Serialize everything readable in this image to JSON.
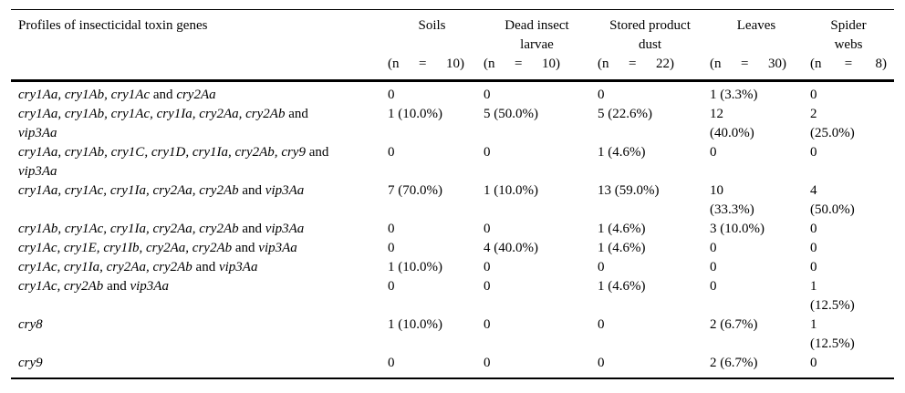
{
  "colors": {
    "text": "#000000",
    "rules": "#000000",
    "background": "#ffffff"
  },
  "table": {
    "header": {
      "profiles_label": "Profiles of insecticidal toxin genes",
      "columns": [
        {
          "label": "Soils",
          "n_label": "(n = 10)"
        },
        {
          "label": "Dead insect\nlarvae",
          "n_label": "(n = 10)"
        },
        {
          "label": "Stored product\ndust",
          "n_label": "(n = 22)"
        },
        {
          "label": "Leaves",
          "n_label": "(n = 30)"
        },
        {
          "label": "Spider\nwebs",
          "n_label": "(n = 8)"
        }
      ]
    },
    "rows": [
      {
        "profile": "cry1Aa, cry1Ab, cry1Ac and cry2Aa",
        "values": [
          "0",
          "0",
          "0",
          "1 (3.3%)",
          "0"
        ]
      },
      {
        "profile": "cry1Aa, cry1Ab, cry1Ac, cry1Ia, cry2Aa, cry2Ab and\nvip3Aa",
        "values": [
          "1 (10.0%)",
          "5 (50.0%)",
          "5 (22.6%)",
          "12\n(40.0%)",
          "2\n(25.0%)"
        ]
      },
      {
        "profile": "cry1Aa, cry1Ab, cry1C, cry1D, cry1Ia, cry2Ab, cry9 and\nvip3Aa",
        "values": [
          "0",
          "0",
          "1 (4.6%)",
          "0",
          "0"
        ]
      },
      {
        "profile": "cry1Aa, cry1Ac, cry1Ia, cry2Aa, cry2Ab and vip3Aa",
        "values": [
          "7 (70.0%)",
          "1 (10.0%)",
          "13 (59.0%)",
          "10\n(33.3%)",
          "4\n(50.0%)"
        ]
      },
      {
        "profile": "cry1Ab, cry1Ac, cry1Ia, cry2Aa, cry2Ab and vip3Aa",
        "values": [
          "0",
          "0",
          "1 (4.6%)",
          "3 (10.0%)",
          "0"
        ]
      },
      {
        "profile": "cry1Ac, cry1E, cry1Ib, cry2Aa, cry2Ab and vip3Aa",
        "values": [
          "0",
          "4 (40.0%)",
          "1 (4.6%)",
          "0",
          "0"
        ]
      },
      {
        "profile": "cry1Ac, cry1Ia, cry2Aa, cry2Ab and vip3Aa",
        "values": [
          "1 (10.0%)",
          "0",
          "0",
          "0",
          "0"
        ]
      },
      {
        "profile": "cry1Ac, cry2Ab and vip3Aa",
        "values": [
          "0",
          "0",
          "1 (4.6%)",
          "0",
          "1\n(12.5%)"
        ]
      },
      {
        "profile": "cry8",
        "values": [
          "1 (10.0%)",
          "0",
          "0",
          "2 (6.7%)",
          "1\n(12.5%)"
        ]
      },
      {
        "profile": "cry9",
        "values": [
          "0",
          "0",
          "0",
          "2 (6.7%)",
          "0"
        ]
      }
    ]
  }
}
